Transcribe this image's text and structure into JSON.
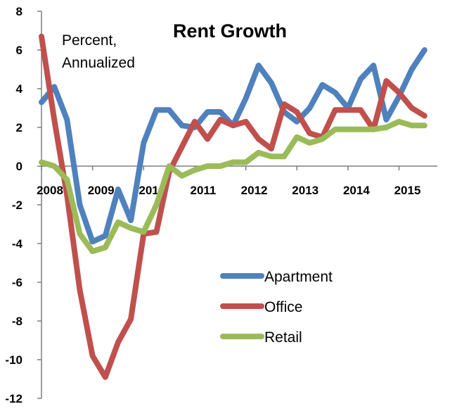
{
  "chart_data": {
    "type": "line",
    "title": "Rent Growth",
    "annotation": [
      "Percent,",
      "Annualized"
    ],
    "xlabel": "",
    "ylabel": "",
    "ylim": [
      -12,
      8
    ],
    "yticks": [
      8,
      6,
      4,
      2,
      0,
      -2,
      -4,
      -6,
      -8,
      -10,
      -12
    ],
    "xlim": [
      2008,
      2015.75
    ],
    "xticks": [
      2008,
      2009,
      2010,
      2011,
      2012,
      2013,
      2014,
      2015
    ],
    "xtick_labels": [
      "2008",
      "2009",
      "2010",
      "2011",
      "2012",
      "2013",
      "2014",
      "2015"
    ],
    "grid": false,
    "legend_position": "lower-right",
    "x": [
      2008.0,
      2008.25,
      2008.5,
      2008.75,
      2009.0,
      2009.25,
      2009.5,
      2009.75,
      2010.0,
      2010.25,
      2010.5,
      2010.75,
      2011.0,
      2011.25,
      2011.5,
      2011.75,
      2012.0,
      2012.25,
      2012.5,
      2012.75,
      2013.0,
      2013.25,
      2013.5,
      2013.75,
      2014.0,
      2014.25,
      2014.5,
      2014.75,
      2015.0,
      2015.25,
      2015.5
    ],
    "series": [
      {
        "name": "Apartment",
        "color": "#4f81bd",
        "values": [
          3.3,
          4.1,
          2.4,
          -2.0,
          -3.9,
          -3.6,
          -1.2,
          -2.8,
          1.2,
          2.9,
          2.9,
          2.1,
          2.0,
          2.8,
          2.8,
          2.1,
          3.5,
          5.2,
          4.3,
          2.8,
          2.3,
          3.0,
          4.2,
          3.8,
          3.0,
          4.5,
          5.2,
          2.4,
          3.6,
          5.0,
          6.0
        ]
      },
      {
        "name": "Office",
        "color": "#c0504d",
        "values": [
          6.7,
          2.4,
          -1.5,
          -6.4,
          -9.8,
          -10.9,
          -9.1,
          -7.9,
          -3.5,
          -3.4,
          -0.3,
          1.0,
          2.3,
          1.4,
          2.4,
          2.1,
          2.3,
          1.4,
          0.9,
          3.2,
          2.8,
          1.7,
          1.5,
          2.9,
          2.9,
          2.9,
          1.9,
          4.4,
          3.8,
          3.0,
          2.6
        ]
      },
      {
        "name": "Retail",
        "color": "#9bbb59",
        "values": [
          0.2,
          0.0,
          -0.7,
          -3.5,
          -4.4,
          -4.2,
          -2.9,
          -3.2,
          -3.4,
          -2.0,
          0.0,
          -0.5,
          -0.2,
          0.0,
          0.0,
          0.2,
          0.2,
          0.7,
          0.5,
          0.5,
          1.5,
          1.2,
          1.4,
          1.9,
          1.9,
          1.9,
          1.9,
          2.0,
          2.3,
          2.1,
          2.1
        ]
      }
    ]
  }
}
